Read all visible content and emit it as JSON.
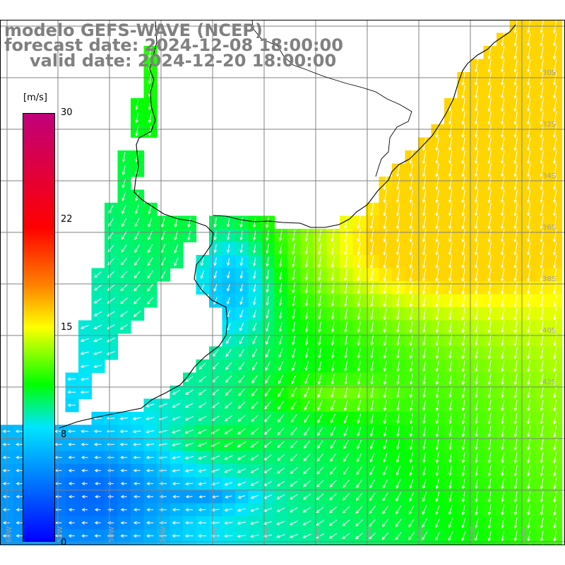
{
  "title": {
    "model": "modelo GEFS-WAVE (NCEP)",
    "forecast": "forecast date: 2024-12-08 18:00:00",
    "valid": "valid date: 2024-12-20 18:00:00"
  },
  "colorbar": {
    "unit": "m/s",
    "min": 0,
    "max": 30,
    "ticks": [
      "30",
      "22",
      "15",
      "8",
      "0"
    ],
    "tick_values": [
      30,
      22,
      15,
      8,
      0
    ],
    "stops": [
      {
        "value": 0,
        "color": "#0000ff"
      },
      {
        "value": 8,
        "color": "#00e5ff"
      },
      {
        "value": 11,
        "color": "#00ff00"
      },
      {
        "value": 15,
        "color": "#ffff00"
      },
      {
        "value": 18,
        "color": "#ff8000"
      },
      {
        "value": 22,
        "color": "#ff0000"
      },
      {
        "value": 30,
        "color": "#c0007a"
      }
    ]
  },
  "map": {
    "land_color": "#ffffff",
    "coast_color": "#000000",
    "grid_color": "#808080",
    "arrow_color": "#ffffff",
    "lat_labels": [
      "30S",
      "32S",
      "34S",
      "36S",
      "38S",
      "40S",
      "42S"
    ],
    "lon_labels": [
      "60W",
      "58W",
      "56W",
      "54W",
      "52W",
      "50W",
      "48W",
      "46W",
      "44W",
      "42W",
      "40W"
    ]
  }
}
